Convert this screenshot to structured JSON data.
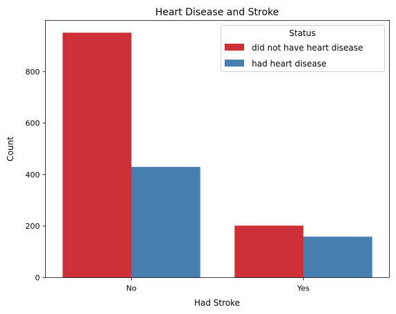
{
  "chart_data": {
    "type": "bar",
    "title": "Heart Disease and Stroke",
    "xlabel": "Had Stroke",
    "ylabel": "Count",
    "categories": [
      "No",
      "Yes"
    ],
    "series": [
      {
        "name": "did not have heart disease",
        "color": "#cd3034",
        "values": [
          951,
          202
        ]
      },
      {
        "name": "had heart disease",
        "color": "#467eaf",
        "values": [
          430,
          159
        ]
      }
    ],
    "ylim": [
      0,
      998.5
    ],
    "yticks": [
      0,
      200,
      400,
      600,
      800
    ],
    "grid": false,
    "legend": {
      "title": "Status",
      "placement": "top-right"
    }
  }
}
